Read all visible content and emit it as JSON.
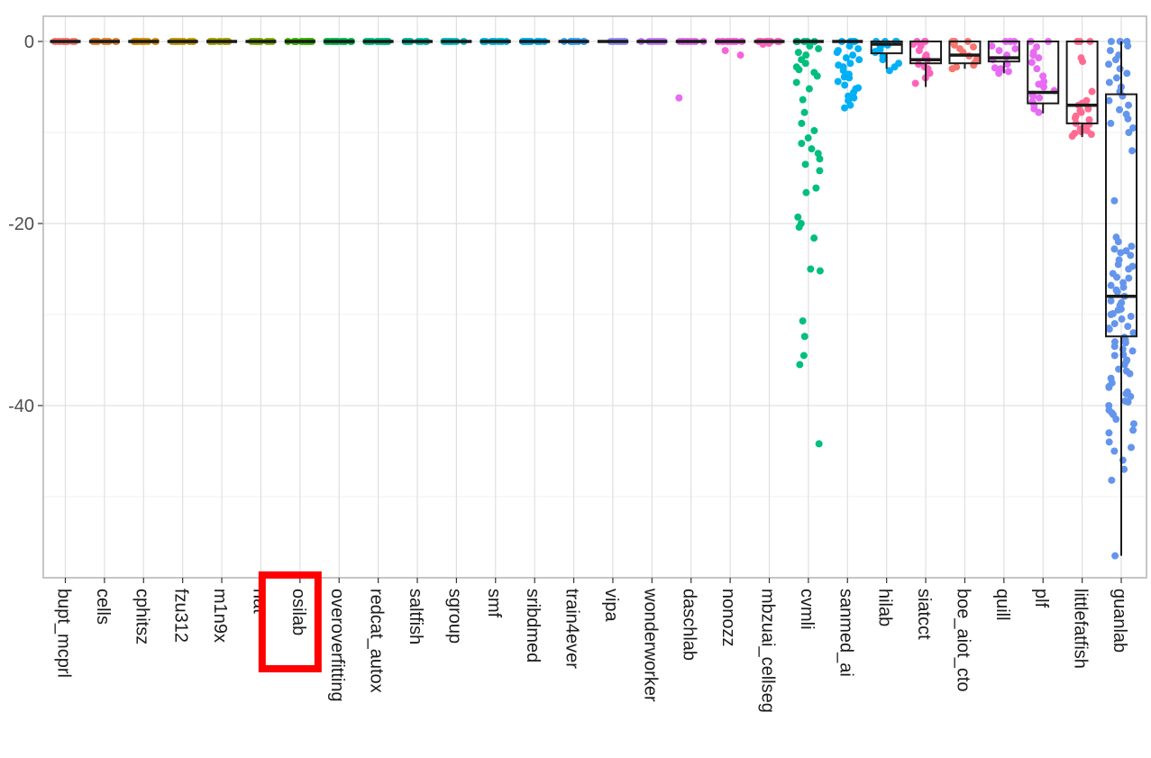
{
  "chart_data": {
    "type": "box-jitter",
    "title": "",
    "xlabel": "",
    "ylabel": "",
    "ylim": [
      -59,
      0
    ],
    "y_ticks": [
      0,
      -20,
      -40
    ],
    "y_tick_labels": [
      "0",
      "-20",
      "-40"
    ],
    "grid": true,
    "legend": "none",
    "highlight": {
      "category": "osilab",
      "color": "#ff0000"
    },
    "categories": [
      "bupt_mcprl",
      "cells",
      "cphitsz",
      "fzu312",
      "m1n9x",
      "nat",
      "osilab",
      "overoverfitting",
      "redcat_autox",
      "saltfish",
      "sgroup",
      "smf",
      "sribdmed",
      "train4ever",
      "vipa",
      "wonderworker",
      "daschlab",
      "nonozz",
      "mbzuai_cellseg",
      "cvmli",
      "sanmed_ai",
      "hilab",
      "siatcct",
      "boe_aiot_cto",
      "quill",
      "plf",
      "littlefatfish",
      "guanlab"
    ],
    "colors": [
      "#F8766D",
      "#EA8331",
      "#D89000",
      "#C09B00",
      "#A3A500",
      "#7CAE00",
      "#39B600",
      "#00BB4E",
      "#00BF7D",
      "#00C1A3",
      "#00BFC4",
      "#00BAE0",
      "#00B0F6",
      "#35A2FF",
      "#9590FF",
      "#C77CFF",
      "#E76BF3",
      "#FA62DB",
      "#FF62BC",
      "#00BF7D",
      "#00B0F6",
      "#00B0F6",
      "#FF62BC",
      "#F8766D",
      "#E76BF3",
      "#E76BF3",
      "#FF6C91",
      "#6495ED"
    ],
    "series": [
      {
        "name": "bupt_mcprl",
        "q1": 0,
        "median": 0,
        "q3": 0,
        "whisker_low": 0,
        "whisker_high": 0,
        "points": [
          0,
          0,
          0,
          0,
          0,
          0,
          0,
          0,
          0,
          0,
          0,
          0
        ]
      },
      {
        "name": "cells",
        "q1": 0,
        "median": 0,
        "q3": 0,
        "whisker_low": 0,
        "whisker_high": 0,
        "points": [
          0,
          0,
          0,
          0,
          0,
          0,
          0,
          0,
          0,
          0,
          0,
          0
        ]
      },
      {
        "name": "cphitsz",
        "q1": 0,
        "median": 0,
        "q3": 0,
        "whisker_low": 0,
        "whisker_high": 0,
        "points": [
          0,
          0,
          0,
          0,
          0,
          0,
          0,
          0,
          0,
          0,
          0,
          0
        ]
      },
      {
        "name": "fzu312",
        "q1": 0,
        "median": 0,
        "q3": 0,
        "whisker_low": 0,
        "whisker_high": 0,
        "points": [
          0,
          0,
          0,
          0,
          0,
          0,
          0,
          0,
          0,
          0,
          0,
          0
        ]
      },
      {
        "name": "m1n9x",
        "q1": 0,
        "median": 0,
        "q3": 0,
        "whisker_low": 0,
        "whisker_high": 0,
        "points": [
          0,
          0,
          0,
          0,
          0,
          0,
          0,
          0,
          0,
          0,
          0,
          0
        ]
      },
      {
        "name": "nat",
        "q1": 0,
        "median": 0,
        "q3": 0,
        "whisker_low": 0,
        "whisker_high": 0,
        "points": [
          0,
          0,
          0,
          0,
          0,
          0,
          0,
          0,
          0,
          0,
          0,
          0
        ]
      },
      {
        "name": "osilab",
        "q1": 0,
        "median": 0,
        "q3": 0,
        "whisker_low": 0,
        "whisker_high": 0,
        "points": [
          0,
          0,
          0,
          0,
          0,
          0,
          0,
          0,
          0,
          0,
          0,
          0
        ]
      },
      {
        "name": "overoverfitting",
        "q1": 0,
        "median": 0,
        "q3": 0,
        "whisker_low": 0,
        "whisker_high": 0,
        "points": [
          0,
          0,
          0,
          0,
          0,
          0,
          0,
          0,
          0,
          0,
          0,
          0
        ]
      },
      {
        "name": "redcat_autox",
        "q1": 0,
        "median": 0,
        "q3": 0,
        "whisker_low": 0,
        "whisker_high": 0,
        "points": [
          0,
          0,
          0,
          0,
          0,
          0,
          0,
          0,
          0,
          0,
          0,
          0
        ]
      },
      {
        "name": "saltfish",
        "q1": 0,
        "median": 0,
        "q3": 0,
        "whisker_low": 0,
        "whisker_high": 0,
        "points": [
          0,
          0,
          0,
          0,
          0,
          0,
          0,
          0,
          0,
          0,
          0,
          0
        ]
      },
      {
        "name": "sgroup",
        "q1": 0,
        "median": 0,
        "q3": 0,
        "whisker_low": 0,
        "whisker_high": 0,
        "points": [
          0,
          0,
          0,
          0,
          0,
          0,
          0,
          0,
          0,
          0,
          0,
          0
        ]
      },
      {
        "name": "smf",
        "q1": 0,
        "median": 0,
        "q3": 0,
        "whisker_low": 0,
        "whisker_high": 0,
        "points": [
          0,
          0,
          0,
          0,
          0,
          0,
          0,
          0,
          0,
          0,
          0,
          0
        ]
      },
      {
        "name": "sribdmed",
        "q1": 0,
        "median": 0,
        "q3": 0,
        "whisker_low": 0,
        "whisker_high": 0,
        "points": [
          0,
          0,
          0,
          0,
          0,
          0,
          0,
          0,
          0,
          0,
          0,
          0
        ]
      },
      {
        "name": "train4ever",
        "q1": 0,
        "median": 0,
        "q3": 0,
        "whisker_low": 0,
        "whisker_high": 0,
        "points": [
          0,
          0,
          0,
          0,
          0,
          0,
          0,
          0,
          0,
          0,
          0,
          0
        ]
      },
      {
        "name": "vipa",
        "q1": 0,
        "median": 0,
        "q3": 0,
        "whisker_low": 0,
        "whisker_high": 0,
        "points": [
          0,
          0,
          0,
          0,
          0,
          0,
          0,
          0,
          0,
          0,
          0,
          0
        ]
      },
      {
        "name": "wonderworker",
        "q1": 0,
        "median": 0,
        "q3": 0,
        "whisker_low": 0,
        "whisker_high": 0,
        "points": [
          0,
          0,
          0,
          0,
          0,
          0,
          0,
          0,
          0,
          0,
          0,
          0
        ]
      },
      {
        "name": "daschlab",
        "q1": 0,
        "median": 0,
        "q3": 0,
        "whisker_low": 0,
        "whisker_high": 0,
        "points": [
          0,
          0,
          0,
          0,
          0,
          0,
          0,
          0,
          0,
          0,
          0,
          -6.2
        ]
      },
      {
        "name": "nonozz",
        "q1": 0,
        "median": 0,
        "q3": 0,
        "whisker_low": 0,
        "whisker_high": 0,
        "points": [
          0,
          0,
          0,
          0,
          0,
          0,
          0,
          0,
          -1.0,
          -1.5,
          0,
          0
        ]
      },
      {
        "name": "mbzuai_cellseg",
        "q1": 0,
        "median": 0,
        "q3": 0,
        "whisker_low": 0,
        "whisker_high": 0,
        "points": [
          0,
          0,
          0,
          0,
          0,
          0,
          0,
          0,
          -0.2,
          -0.3,
          0,
          0
        ]
      },
      {
        "name": "cvmli",
        "q1": 0,
        "median": 0,
        "q3": 0,
        "whisker_low": 0,
        "whisker_high": 0,
        "points": [
          0,
          0,
          0,
          0,
          0,
          -0.5,
          -0.8,
          -1.2,
          -1.5,
          -2,
          -2.4,
          -2.8,
          -3.1,
          -3.4,
          -3.8,
          -4.5,
          -5.2,
          -6.4,
          -7.8,
          -9,
          -9.8,
          -10.6,
          -11.2,
          -11.8,
          -12.3,
          -12.9,
          -13.5,
          -14.2,
          -16.1,
          -16.6,
          -19.3,
          -20,
          -20.4,
          -21.6,
          -25,
          -25.2,
          -30.7,
          -32.4,
          -34.5,
          -35.5,
          -44.2
        ]
      },
      {
        "name": "sanmed_ai",
        "q1": 0,
        "median": 0,
        "q3": 0,
        "whisker_low": 0,
        "whisker_high": 0,
        "points": [
          0,
          0,
          0,
          0,
          -0.5,
          -1,
          -1.5,
          -2,
          -2.4,
          -2.8,
          -3.2,
          -3.6,
          -4,
          -4.4,
          -4.8,
          -5.2,
          -5.6,
          -6,
          -6.5,
          -7,
          -7.3,
          -1.2,
          -2.6,
          -3.9,
          -5.1,
          -6.2,
          -0.8,
          -1.8
        ]
      },
      {
        "name": "hilab",
        "q1": -1.3,
        "median": -0.3,
        "q3": 0,
        "whisker_low": -3,
        "whisker_high": 0,
        "points": [
          0,
          0,
          0,
          0,
          -0.3,
          -0.6,
          -0.9,
          -1.2,
          -1.6,
          -2,
          -2.4,
          -2.8,
          -3.2,
          -0.4,
          -1.1
        ]
      },
      {
        "name": "siatcct",
        "q1": -2.4,
        "median": -2.0,
        "q3": 0,
        "whisker_low": -5,
        "whisker_high": 0,
        "points": [
          0,
          0,
          0,
          -0.5,
          -1,
          -1.5,
          -2,
          -2.5,
          -3,
          -3.5,
          -4,
          -4.6,
          -0.3,
          -1.7,
          -2.8
        ]
      },
      {
        "name": "boe_aiot_cto",
        "q1": -2.4,
        "median": -1.5,
        "q3": 0,
        "whisker_low": -3,
        "whisker_high": 0,
        "points": [
          0,
          0,
          0,
          -0.4,
          -0.8,
          -1.2,
          -1.6,
          -2,
          -2.4,
          -2.8,
          -3,
          -0.6,
          -1.9,
          -2.6
        ]
      },
      {
        "name": "quill",
        "q1": -2.2,
        "median": -1.8,
        "q3": 0,
        "whisker_low": -3.5,
        "whisker_high": 0,
        "points": [
          0,
          0,
          0,
          -0.5,
          -1,
          -1.5,
          -2,
          -2.5,
          -3,
          -3.5,
          -0.8,
          -1.7,
          -2.9,
          -3.3
        ]
      },
      {
        "name": "plf",
        "q1": -6.8,
        "median": -5.6,
        "q3": 0,
        "whisker_low": -7.9,
        "whisker_high": 0,
        "points": [
          0,
          0,
          -0.6,
          -1.2,
          -1.8,
          -2.3,
          -3,
          -3.8,
          -4.4,
          -5,
          -5.4,
          -5.8,
          -6.2,
          -6.6,
          -7,
          -7.4,
          -7.8,
          -1.5,
          -4.7,
          -6
        ]
      },
      {
        "name": "littlefatfish",
        "q1": -9,
        "median": -7,
        "q3": 0,
        "whisker_low": -10.5,
        "whisker_high": 0,
        "points": [
          0,
          0,
          0,
          -1.8,
          -2.2,
          -5.5,
          -6.5,
          -7,
          -7.4,
          -7.8,
          -8.2,
          -8.6,
          -9,
          -9.3,
          -9.6,
          -9.9,
          -10.2,
          -10.4,
          -6.8,
          -7.6,
          -8.4,
          -9.1,
          -9.8,
          -10.1
        ]
      },
      {
        "name": "guanlab",
        "q1": -32.4,
        "median": -28,
        "q3": -5.8,
        "whisker_low": -56.5,
        "whisker_high": 0,
        "points": [
          0,
          0,
          0,
          -0.5,
          -1,
          -1.5,
          -2,
          -2.5,
          -3,
          -3.5,
          -4,
          -4.5,
          -5,
          -5.5,
          -6,
          -6.5,
          -7,
          -7.5,
          -8,
          -8.5,
          -9,
          -9.5,
          -10,
          -12,
          -17.5,
          -21.5,
          -22,
          -22.5,
          -23,
          -23.5,
          -24,
          -24.5,
          -25,
          -25.5,
          -26,
          -26.5,
          -27,
          -27.5,
          -28,
          -28.5,
          -29,
          -29.5,
          -30,
          -30.5,
          -31,
          -31.5,
          -32,
          -32.5,
          -33,
          -33.5,
          -34,
          -34.5,
          -35,
          -35.5,
          -36,
          -36.5,
          -37,
          -37.5,
          -38,
          -38.5,
          -39,
          -39.5,
          -40,
          -40.5,
          -41,
          -41.5,
          -42,
          -43,
          -44,
          -45,
          -46,
          -47,
          -48.2,
          -56.5,
          -23.2,
          -26.8,
          -29.4,
          -31.6,
          -33.8,
          -36.2,
          -38.7,
          -24.7,
          -27.3,
          -30.2,
          -32.8,
          -35.1,
          -37.9,
          -40.8,
          -25.9,
          -28.7,
          -31.3,
          -34.4,
          -39.6,
          -42.7,
          -44.6,
          -22.8,
          -29.9,
          -33.1
        ]
      }
    ]
  }
}
